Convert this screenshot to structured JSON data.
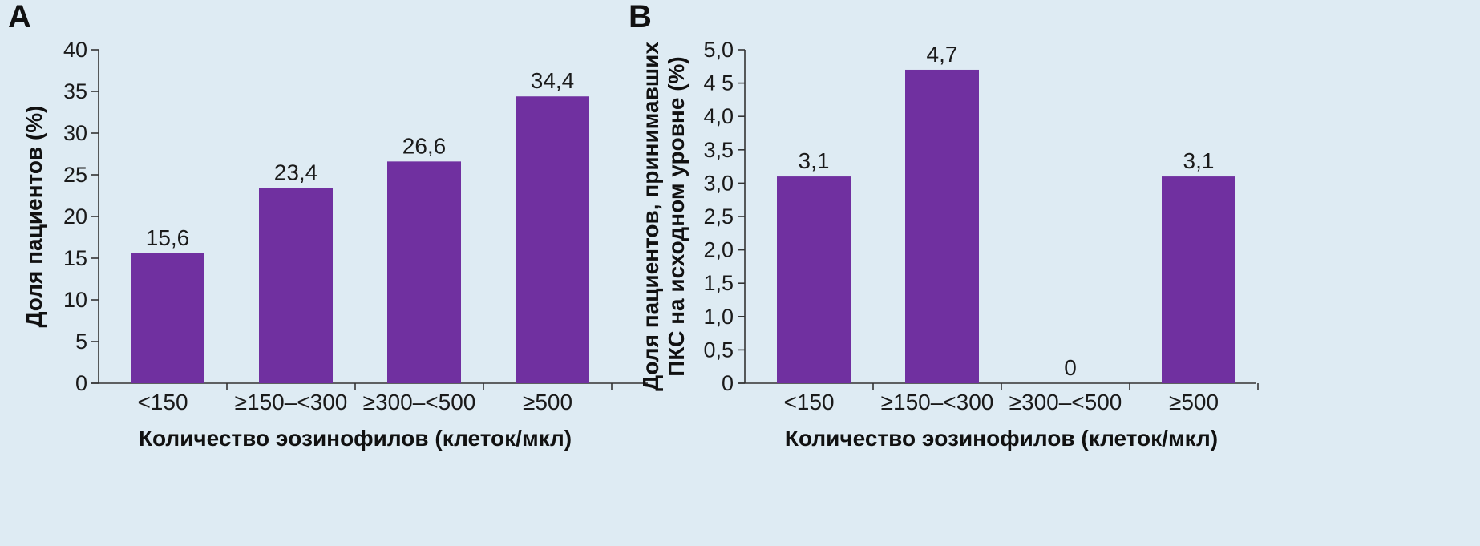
{
  "colors": {
    "bar": "#7030a0",
    "background": "#deebf3",
    "axis": "#333333"
  },
  "chart_data": [
    {
      "panel": "A",
      "type": "bar",
      "categories": [
        "<150",
        "≥150–<300",
        "≥300–<500",
        "≥500"
      ],
      "values": [
        15.6,
        23.4,
        26.6,
        34.4
      ],
      "value_labels": [
        "15,6",
        "23,4",
        "26,6",
        "34,4"
      ],
      "xlabel": "Количество эозинофилов (клеток/мкл)",
      "ylabel": [
        "Доля пациентов (%)"
      ],
      "ylim": [
        0,
        40
      ],
      "yticks": [
        0,
        5,
        10,
        15,
        20,
        25,
        30,
        35,
        40
      ],
      "ytick_labels": [
        "0",
        "5",
        "10",
        "15",
        "20",
        "25",
        "30",
        "35",
        "40"
      ],
      "grid": false,
      "legend": "none"
    },
    {
      "panel": "B",
      "type": "bar",
      "categories": [
        "<150",
        "≥150–<300",
        "≥300–<500",
        "≥500"
      ],
      "values": [
        3.1,
        4.7,
        0,
        3.1
      ],
      "value_labels": [
        "3,1",
        "4,7",
        "0",
        "3,1"
      ],
      "xlabel": "Количество эозинофилов (клеток/мкл)",
      "ylabel": [
        "Доля пациентов, принимавших",
        "ПКС на исходном уровне (%)"
      ],
      "ylim": [
        0,
        5
      ],
      "yticks": [
        0,
        0.5,
        1,
        1.5,
        2,
        2.5,
        3,
        3.5,
        4,
        4.5,
        5
      ],
      "ytick_labels": [
        "0",
        "0,5",
        "1,0",
        "1,5",
        "2,0",
        "2,5",
        "3,0",
        "3,5",
        "4,0",
        "4 5",
        "5,0"
      ],
      "grid": false,
      "legend": "none"
    }
  ]
}
